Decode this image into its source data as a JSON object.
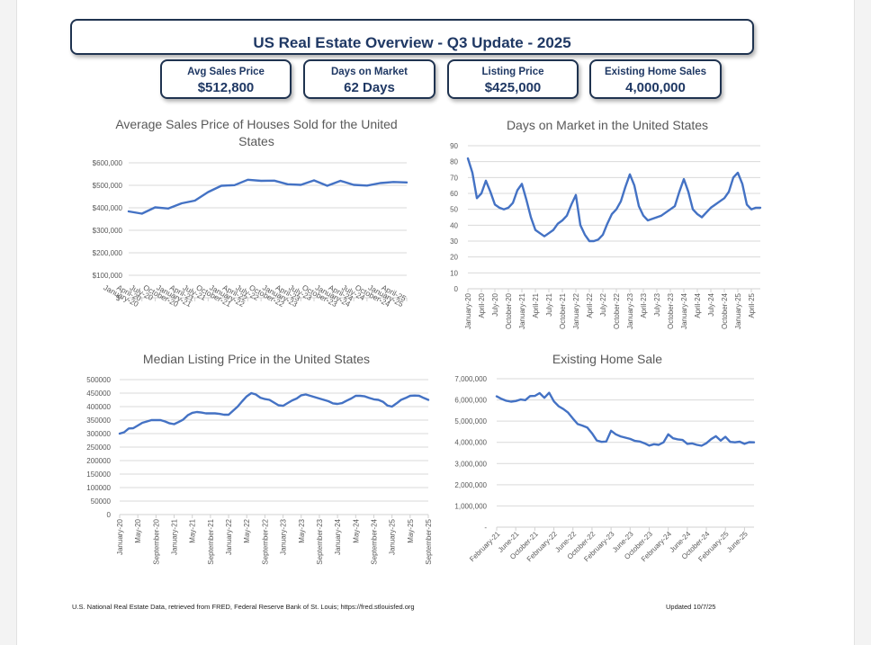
{
  "header": {
    "title": "US Real Estate Overview - Q3 Update - 2025"
  },
  "kpis": [
    {
      "label": "Avg Sales Price",
      "value": "$512,800"
    },
    {
      "label": "Days on Market",
      "value": "62 Days"
    },
    {
      "label": "Listing Price",
      "value": "$425,000"
    },
    {
      "label": "Existing Home Sales",
      "value": "4,000,000"
    }
  ],
  "colors": {
    "line": "#4472c4",
    "accent": "#1f3864",
    "grid": "#d9d9d9",
    "axis_text": "#595959"
  },
  "chart_data": [
    {
      "id": "avg-sales-price",
      "type": "line",
      "title": "Average Sales Price of Houses Sold for the United States",
      "xlabel": "",
      "ylabel": "",
      "ylim": [
        0,
        600000
      ],
      "yticks": [
        0,
        100000,
        200000,
        300000,
        400000,
        500000,
        600000
      ],
      "ytick_labels": [
        "$-",
        "$100,000",
        "$200,000",
        "$300,000",
        "$400,000",
        "$500,000",
        "$600,000"
      ],
      "grid": true,
      "categories": [
        "January-20",
        "April-20",
        "July-20",
        "October-20",
        "January-21",
        "April-21",
        "July-21",
        "October-21",
        "January-22",
        "April-22",
        "July-22",
        "October-22",
        "January-23",
        "April-23",
        "July-23",
        "October-23",
        "January-24",
        "April-24",
        "July-24",
        "October-24",
        "January-25",
        "April-25"
      ],
      "label_every": 1,
      "series": [
        {
          "name": "Average Sales Price",
          "values": [
            384000,
            374000,
            402000,
            397000,
            420000,
            432000,
            470000,
            498000,
            501000,
            525000,
            520000,
            521000,
            505000,
            502000,
            522000,
            498000,
            520000,
            502000,
            499000,
            510000,
            515000,
            512800
          ]
        }
      ]
    },
    {
      "id": "days-on-market",
      "type": "line",
      "title": "Days on Market in the United States",
      "xlabel": "",
      "ylabel": "",
      "ylim": [
        0,
        90
      ],
      "yticks": [
        0,
        10,
        20,
        30,
        40,
        50,
        60,
        70,
        80,
        90
      ],
      "ytick_labels": [
        "0",
        "10",
        "20",
        "30",
        "40",
        "50",
        "60",
        "70",
        "80",
        "90"
      ],
      "grid": true,
      "categories": [
        "January-20",
        "February-20",
        "March-20",
        "April-20",
        "May-20",
        "June-20",
        "July-20",
        "August-20",
        "September-20",
        "October-20",
        "November-20",
        "December-20",
        "January-21",
        "February-21",
        "March-21",
        "April-21",
        "May-21",
        "June-21",
        "July-21",
        "August-21",
        "September-21",
        "October-21",
        "November-21",
        "December-21",
        "January-22",
        "February-22",
        "March-22",
        "April-22",
        "May-22",
        "June-22",
        "July-22",
        "August-22",
        "September-22",
        "October-22",
        "November-22",
        "December-22",
        "January-23",
        "February-23",
        "March-23",
        "April-23",
        "May-23",
        "June-23",
        "July-23",
        "August-23",
        "September-23",
        "October-23",
        "November-23",
        "December-23",
        "January-24",
        "February-24",
        "March-24",
        "April-24",
        "May-24",
        "June-24",
        "July-24",
        "August-24",
        "September-24",
        "October-24",
        "November-24",
        "December-24",
        "January-25",
        "February-25",
        "March-25",
        "April-25",
        "May-25",
        "June-25"
      ],
      "label_every": 3,
      "series": [
        {
          "name": "Days on Market",
          "values": [
            82,
            73,
            57,
            60,
            68,
            61,
            53,
            51,
            50,
            51,
            54,
            62,
            66,
            56,
            45,
            37,
            35,
            33,
            35,
            37,
            41,
            43,
            46,
            53,
            59,
            40,
            34,
            30,
            30,
            31,
            34,
            41,
            47,
            50,
            55,
            64,
            72,
            65,
            52,
            46,
            43,
            44,
            45,
            46,
            48,
            50,
            52,
            61,
            69,
            61,
            50,
            47,
            45,
            48,
            51,
            53,
            55,
            57,
            61,
            70,
            73,
            66,
            53,
            50,
            51,
            51
          ]
        }
      ]
    },
    {
      "id": "median-listing-price",
      "type": "line",
      "title": "Median Listing Price in the United States",
      "xlabel": "",
      "ylabel": "",
      "ylim": [
        0,
        500000
      ],
      "yticks": [
        0,
        50000,
        100000,
        150000,
        200000,
        250000,
        300000,
        350000,
        400000,
        450000,
        500000
      ],
      "ytick_labels": [
        "0",
        "50000",
        "100000",
        "150000",
        "200000",
        "250000",
        "300000",
        "350000",
        "400000",
        "450000",
        "500000"
      ],
      "grid": true,
      "categories": [
        "January-20",
        "February-20",
        "March-20",
        "April-20",
        "May-20",
        "June-20",
        "July-20",
        "August-20",
        "September-20",
        "October-20",
        "November-20",
        "December-20",
        "January-21",
        "February-21",
        "March-21",
        "April-21",
        "May-21",
        "June-21",
        "July-21",
        "August-21",
        "September-21",
        "October-21",
        "November-21",
        "December-21",
        "January-22",
        "February-22",
        "March-22",
        "April-22",
        "May-22",
        "June-22",
        "July-22",
        "August-22",
        "September-22",
        "October-22",
        "November-22",
        "December-22",
        "January-23",
        "February-23",
        "March-23",
        "April-23",
        "May-23",
        "June-23",
        "July-23",
        "August-23",
        "September-23",
        "October-23",
        "November-23",
        "December-23",
        "January-24",
        "February-24",
        "March-24",
        "April-24",
        "May-24",
        "June-24",
        "July-24",
        "August-24",
        "September-24",
        "October-24",
        "November-24",
        "December-24",
        "January-25",
        "February-25",
        "March-25",
        "April-25",
        "May-25",
        "June-25",
        "July-25",
        "August-25",
        "September-25"
      ],
      "label_every": 4,
      "series": [
        {
          "name": "Median Listing Price",
          "values": [
            300000,
            305000,
            319000,
            320000,
            330000,
            340000,
            345000,
            350000,
            350000,
            350000,
            345000,
            338000,
            335000,
            343000,
            352000,
            368000,
            377000,
            380000,
            378000,
            375000,
            375000,
            375000,
            373000,
            370000,
            370000,
            385000,
            400000,
            420000,
            438000,
            450000,
            445000,
            433000,
            428000,
            425000,
            415000,
            405000,
            403000,
            413000,
            423000,
            430000,
            442000,
            445000,
            440000,
            435000,
            430000,
            425000,
            420000,
            412000,
            410000,
            413000,
            422000,
            430000,
            440000,
            440000,
            438000,
            432000,
            427000,
            425000,
            418000,
            404000,
            400000,
            412000,
            425000,
            432000,
            440000,
            441000,
            440000,
            432000,
            425000
          ]
        }
      ]
    },
    {
      "id": "existing-home-sales",
      "type": "line",
      "title": "Existing Home Sale",
      "xlabel": "",
      "ylabel": "",
      "ylim": [
        0,
        7000000
      ],
      "yticks": [
        0,
        1000000,
        2000000,
        3000000,
        4000000,
        5000000,
        6000000,
        7000000
      ],
      "ytick_labels": [
        "-",
        "1,000,000",
        "2,000,000",
        "3,000,000",
        "4,000,000",
        "5,000,000",
        "6,000,000",
        "7,000,000"
      ],
      "grid": true,
      "categories": [
        "February-21",
        "March-21",
        "April-21",
        "May-21",
        "June-21",
        "July-21",
        "August-21",
        "September-21",
        "October-21",
        "November-21",
        "December-21",
        "January-22",
        "February-22",
        "March-22",
        "April-22",
        "May-22",
        "June-22",
        "July-22",
        "August-22",
        "September-22",
        "October-22",
        "November-22",
        "December-22",
        "January-23",
        "February-23",
        "March-23",
        "April-23",
        "May-23",
        "June-23",
        "July-23",
        "August-23",
        "September-23",
        "October-23",
        "November-23",
        "December-23",
        "January-24",
        "February-24",
        "March-24",
        "April-24",
        "May-24",
        "June-24",
        "July-24",
        "August-24",
        "September-24",
        "October-24",
        "November-24",
        "December-24",
        "January-25",
        "February-25",
        "March-25",
        "April-25",
        "May-25",
        "June-25",
        "July-25",
        "August-25"
      ],
      "label_every": 4,
      "series": [
        {
          "name": "Existing Home Sales",
          "values": [
            6170000,
            6050000,
            5960000,
            5920000,
            5950000,
            6020000,
            5990000,
            6180000,
            6190000,
            6320000,
            6100000,
            6340000,
            5930000,
            5700000,
            5570000,
            5400000,
            5120000,
            4860000,
            4790000,
            4700000,
            4430000,
            4090000,
            4020000,
            4040000,
            4550000,
            4380000,
            4280000,
            4220000,
            4160000,
            4070000,
            4040000,
            3960000,
            3850000,
            3910000,
            3880000,
            4000000,
            4380000,
            4190000,
            4140000,
            4110000,
            3930000,
            3950000,
            3880000,
            3840000,
            3960000,
            4150000,
            4290000,
            4080000,
            4260000,
            4020000,
            4000000,
            4030000,
            3930000,
            4010000,
            4000000
          ]
        }
      ]
    }
  ],
  "footer": {
    "source": "U.S. National Real Estate Data, retrieved from FRED, Federal Reserve Bank of St. Louis; https://fred.stlouisfed.org",
    "updated": "Updated 10/7/25"
  }
}
